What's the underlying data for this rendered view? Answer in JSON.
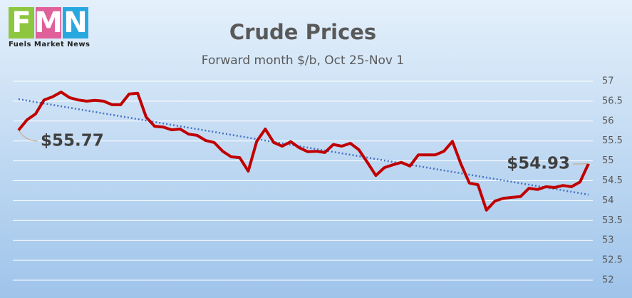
{
  "logo": {
    "letters": [
      "F",
      "M",
      "N"
    ],
    "tagline": "Fuels Market News"
  },
  "chart_data": {
    "type": "line",
    "title": "Crude Prices",
    "subtitle": "Forward month $/b, Oct 25-Nov 1",
    "values": [
      55.77,
      56.03,
      56.18,
      56.53,
      56.61,
      56.73,
      56.59,
      56.53,
      56.5,
      56.52,
      56.5,
      56.41,
      56.41,
      56.68,
      56.7,
      56.1,
      55.87,
      55.85,
      55.78,
      55.8,
      55.67,
      55.64,
      55.51,
      55.46,
      55.24,
      55.1,
      55.08,
      54.74,
      55.49,
      55.8,
      55.46,
      55.37,
      55.48,
      55.33,
      55.23,
      55.24,
      55.21,
      55.41,
      55.37,
      55.44,
      55.28,
      54.96,
      54.63,
      54.83,
      54.9,
      54.96,
      54.87,
      55.15,
      55.15,
      55.15,
      55.24,
      55.49,
      54.92,
      54.44,
      54.4,
      53.76,
      53.99,
      54.06,
      54.08,
      54.1,
      54.31,
      54.28,
      54.35,
      54.33,
      54.38,
      54.35,
      54.47,
      54.93
    ],
    "value_labels": [
      "$55.77",
      null,
      null,
      null,
      null,
      null,
      null,
      null,
      null,
      null,
      null,
      null,
      null,
      null,
      null,
      null,
      null,
      null,
      null,
      null,
      null,
      null,
      null,
      null,
      null,
      null,
      null,
      null,
      null,
      null,
      null,
      null,
      null,
      null,
      null,
      null,
      null,
      null,
      null,
      null,
      null,
      null,
      null,
      null,
      null,
      null,
      null,
      null,
      null,
      null,
      null,
      null,
      null,
      null,
      null,
      null,
      null,
      null,
      null,
      null,
      null,
      null,
      null,
      null,
      null,
      null,
      null,
      "$54.93"
    ],
    "color": "#c00000",
    "trendline": {
      "start": 56.55,
      "end": 54.15,
      "color": "#4472c4"
    },
    "ylim": [
      52,
      57
    ],
    "yticks": [
      52,
      52.5,
      53,
      53.5,
      54,
      54.5,
      55,
      55.5,
      56,
      56.5,
      57
    ],
    "grid": true
  }
}
